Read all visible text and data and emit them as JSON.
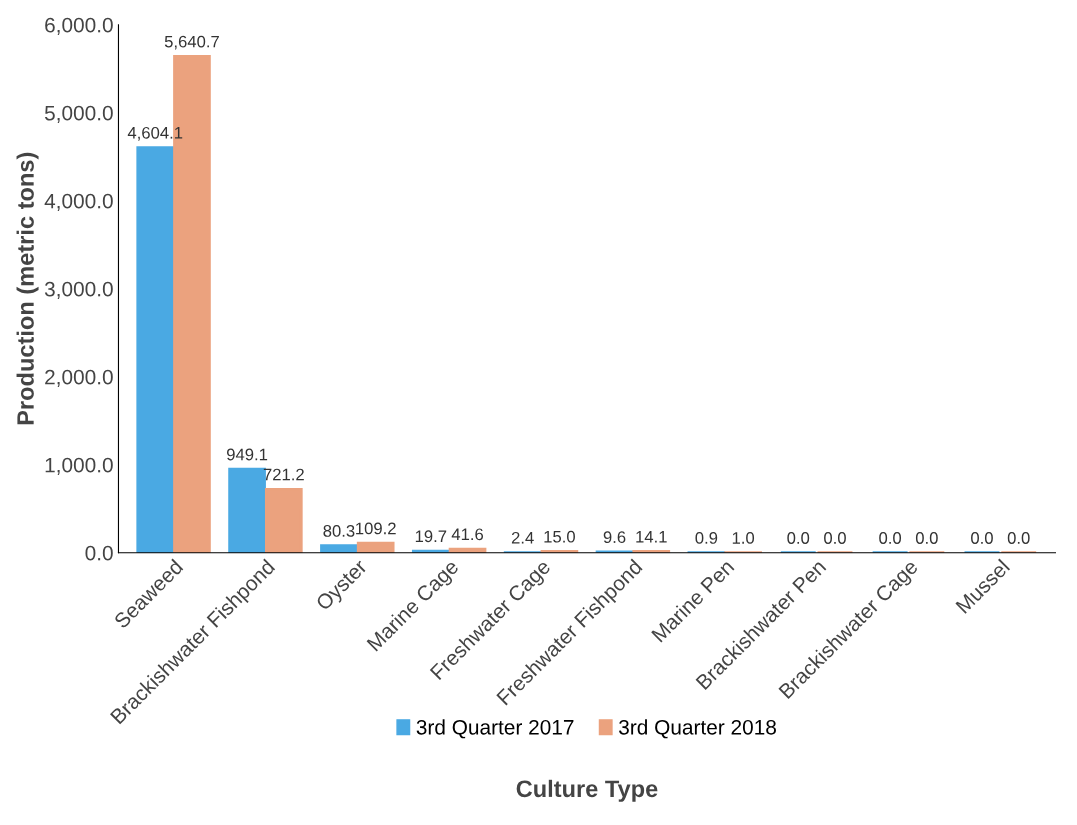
{
  "chart_data": {
    "type": "bar",
    "xlabel": "Culture Type",
    "ylabel": "Production (metric tons)",
    "categories": [
      "Seaweed",
      "Brackishwater Fishpond",
      "Oyster",
      "Marine Cage",
      "Freshwater Cage",
      "Freshwater Fishpond",
      "Marine Pen",
      "Brackishwater Pen",
      "Brackishwater Cage",
      "Mussel"
    ],
    "series": [
      {
        "name": "3rd Quarter 2017",
        "color": "#4aa9e3",
        "values": [
          4604.1,
          949.1,
          80.3,
          19.7,
          2.4,
          9.6,
          0.9,
          0.0,
          0.0,
          0.0
        ],
        "value_labels": [
          "4,604.1",
          "949.1",
          "80.3",
          "19.7",
          "2.4",
          "9.6",
          "0.9",
          "0.0",
          "0.0",
          "0.0"
        ]
      },
      {
        "name": "3rd Quarter 2018",
        "color": "#eba27e",
        "values": [
          5640.7,
          721.2,
          109.2,
          41.6,
          15.0,
          14.1,
          1.0,
          0.0,
          0.0,
          0.0
        ],
        "value_labels": [
          "5,640.7",
          "721.2",
          "109.2",
          "41.6",
          "15.0",
          "14.1",
          "1.0",
          "0.0",
          "0.0",
          "0.0"
        ]
      }
    ],
    "ylim": [
      0,
      6000
    ],
    "yticks": [
      {
        "value": 0,
        "label": "0.0"
      },
      {
        "value": 1000,
        "label": "1,000.0"
      },
      {
        "value": 2000,
        "label": "2,000.0"
      },
      {
        "value": 3000,
        "label": "3,000.0"
      },
      {
        "value": 4000,
        "label": "4,000.0"
      },
      {
        "value": 5000,
        "label": "5,000.0"
      },
      {
        "value": 6000,
        "label": "6,000.0"
      }
    ],
    "grid": false,
    "legend": "bottom"
  }
}
